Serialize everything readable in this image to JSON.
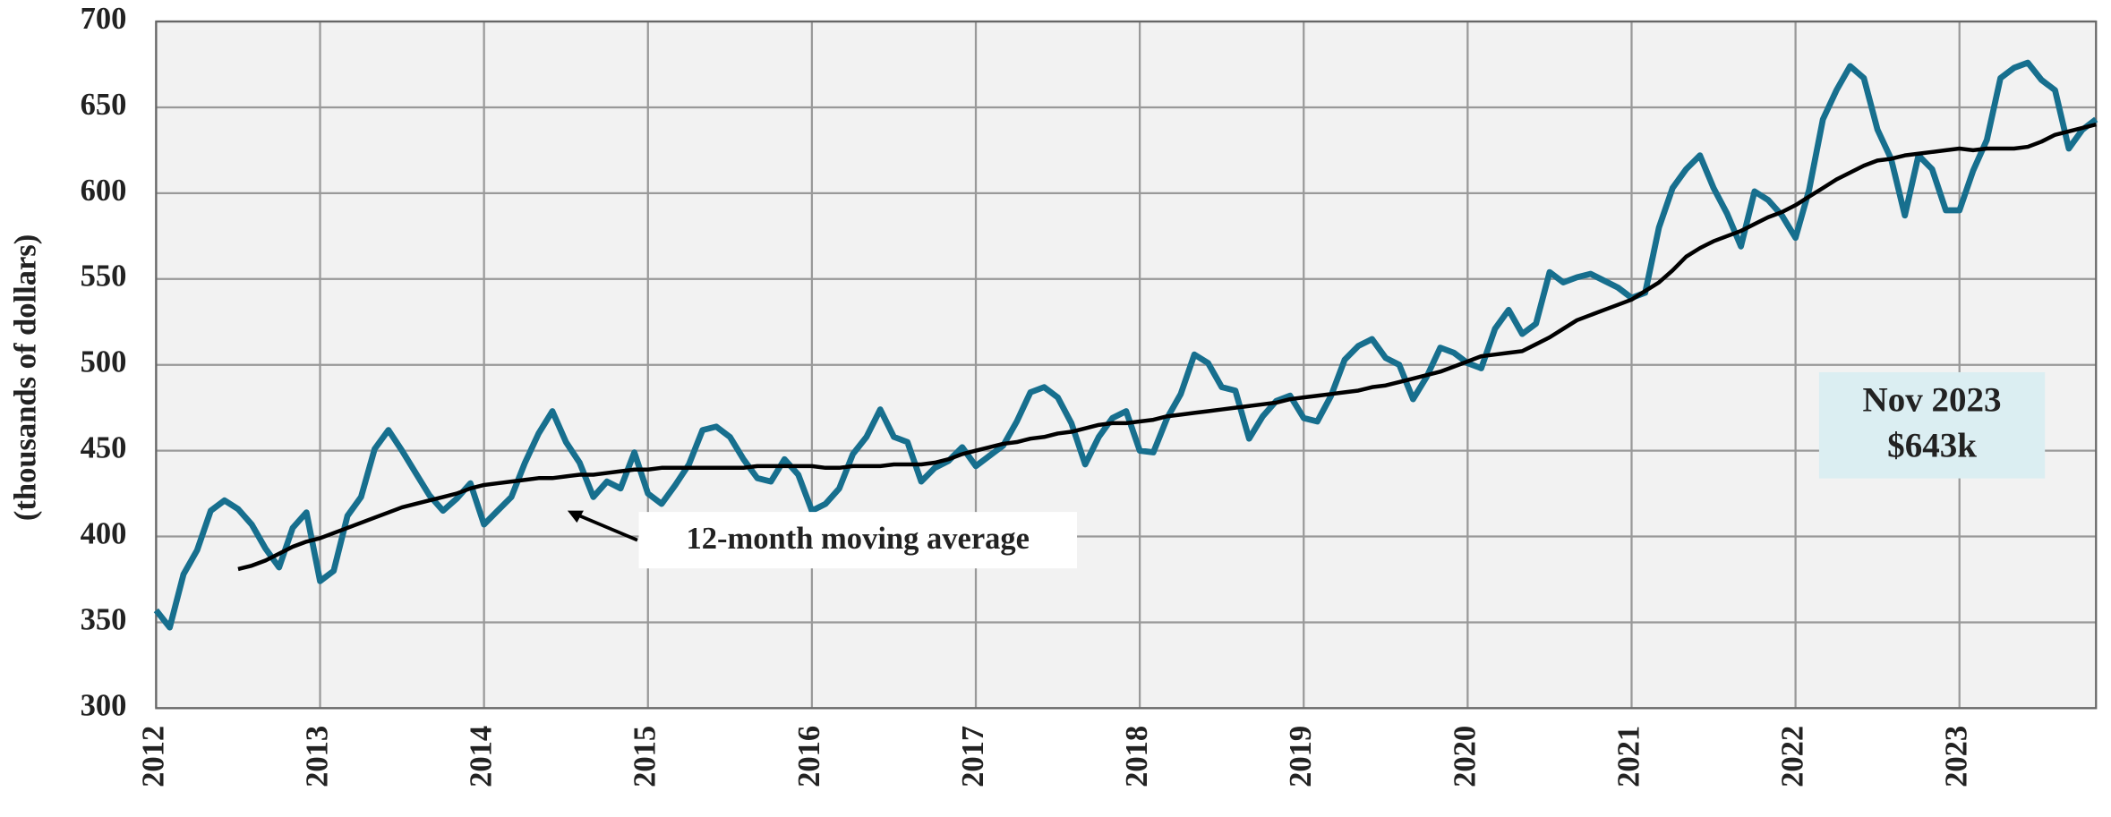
{
  "chart_data": {
    "type": "line",
    "y_label": "(thousands of dollars)",
    "x": [
      2012,
      2012.083,
      2012.167,
      2012.25,
      2012.333,
      2012.417,
      2012.5,
      2012.583,
      2012.667,
      2012.75,
      2012.833,
      2012.917,
      2013,
      2013.083,
      2013.167,
      2013.25,
      2013.333,
      2013.417,
      2013.5,
      2013.583,
      2013.667,
      2013.75,
      2013.833,
      2013.917,
      2014,
      2014.083,
      2014.167,
      2014.25,
      2014.333,
      2014.417,
      2014.5,
      2014.583,
      2014.667,
      2014.75,
      2014.833,
      2014.917,
      2015,
      2015.083,
      2015.167,
      2015.25,
      2015.333,
      2015.417,
      2015.5,
      2015.583,
      2015.667,
      2015.75,
      2015.833,
      2015.917,
      2016,
      2016.083,
      2016.167,
      2016.25,
      2016.333,
      2016.417,
      2016.5,
      2016.583,
      2016.667,
      2016.75,
      2016.833,
      2016.917,
      2017,
      2017.083,
      2017.167,
      2017.25,
      2017.333,
      2017.417,
      2017.5,
      2017.583,
      2017.667,
      2017.75,
      2017.833,
      2017.917,
      2018,
      2018.083,
      2018.167,
      2018.25,
      2018.333,
      2018.417,
      2018.5,
      2018.583,
      2018.667,
      2018.75,
      2018.833,
      2018.917,
      2019,
      2019.083,
      2019.167,
      2019.25,
      2019.333,
      2019.417,
      2019.5,
      2019.583,
      2019.667,
      2019.75,
      2019.833,
      2019.917,
      2020,
      2020.083,
      2020.167,
      2020.25,
      2020.333,
      2020.417,
      2020.5,
      2020.583,
      2020.667,
      2020.75,
      2020.833,
      2020.917,
      2021,
      2021.083,
      2021.167,
      2021.25,
      2021.333,
      2021.417,
      2021.5,
      2021.583,
      2021.667,
      2021.75,
      2021.833,
      2021.917,
      2022,
      2022.083,
      2022.167,
      2022.25,
      2022.333,
      2022.417,
      2022.5,
      2022.583,
      2022.667,
      2022.75,
      2022.833,
      2022.917,
      2023,
      2023.083,
      2023.167,
      2023.25,
      2023.333,
      2023.417,
      2023.5,
      2023.583,
      2023.667,
      2023.75,
      2023.833
    ],
    "series": [
      {
        "color": "#176f8e",
        "width": 4.5,
        "values": [
          357,
          347,
          378,
          392,
          415,
          421,
          416,
          407,
          393,
          382,
          405,
          414,
          374,
          380,
          412,
          423,
          451,
          462,
          450,
          437,
          424,
          415,
          422,
          431,
          407,
          415,
          423,
          443,
          460,
          473,
          455,
          443,
          423,
          432,
          428,
          449,
          425,
          419,
          430,
          442,
          462,
          464,
          458,
          445,
          434,
          432,
          445,
          436,
          415,
          419,
          428,
          448,
          458,
          474,
          458,
          455,
          432,
          440,
          444,
          452,
          441,
          447,
          453,
          467,
          484,
          487,
          481,
          466,
          442,
          458,
          469,
          473,
          450,
          449,
          469,
          483,
          506,
          501,
          487,
          485,
          457,
          470,
          479,
          482,
          469,
          467,
          482,
          503,
          511,
          515,
          504,
          500,
          480,
          493,
          510,
          507,
          501,
          498,
          521,
          532,
          518,
          524,
          554,
          548,
          551,
          553,
          549,
          545,
          539,
          542,
          580,
          603,
          614,
          622,
          603,
          588,
          569,
          601,
          596,
          587,
          574,
          602,
          643,
          660,
          674,
          667,
          637,
          620,
          587,
          622,
          614,
          590,
          590,
          613,
          631,
          667,
          673,
          676,
          666,
          660,
          626,
          637,
          643
        ]
      },
      {
        "name": "12-month moving average",
        "color": "#000000",
        "width": 3,
        "values": [
          null,
          null,
          null,
          null,
          null,
          null,
          381,
          383,
          386,
          390,
          394,
          397,
          399,
          402,
          405,
          408,
          411,
          414,
          417,
          419,
          421,
          423,
          425,
          428,
          430,
          431,
          432,
          433,
          434,
          434,
          435,
          436,
          436,
          437,
          438,
          439,
          439,
          440,
          440,
          440,
          440,
          440,
          440,
          440,
          441,
          441,
          441,
          441,
          441,
          440,
          440,
          441,
          441,
          441,
          442,
          442,
          442,
          443,
          445,
          448,
          450,
          452,
          454,
          455,
          457,
          458,
          460,
          461,
          463,
          465,
          466,
          466,
          467,
          468,
          470,
          471,
          472,
          473,
          474,
          475,
          476,
          477,
          478,
          480,
          481,
          482,
          483,
          484,
          485,
          487,
          488,
          490,
          492,
          494,
          496,
          499,
          502,
          505,
          506,
          507,
          508,
          512,
          516,
          521,
          526,
          529,
          532,
          535,
          538,
          543,
          548,
          555,
          563,
          568,
          572,
          575,
          578,
          582,
          586,
          589,
          593,
          598,
          603,
          608,
          612,
          616,
          619,
          620,
          622,
          623,
          624,
          625,
          626,
          625,
          626,
          626,
          626,
          627,
          630,
          634,
          636,
          638,
          640
        ]
      }
    ],
    "xlim": [
      2012,
      2023.833
    ],
    "xticks": [
      2012,
      2013,
      2014,
      2015,
      2016,
      2017,
      2018,
      2019,
      2020,
      2021,
      2022,
      2023
    ],
    "ylim": [
      300,
      700
    ],
    "yticks": [
      300,
      350,
      400,
      450,
      500,
      550,
      600,
      650,
      700
    ],
    "grid": true,
    "callout": {
      "lines": [
        "Nov 2023",
        "$643k"
      ],
      "color": "#dbeef2"
    }
  }
}
